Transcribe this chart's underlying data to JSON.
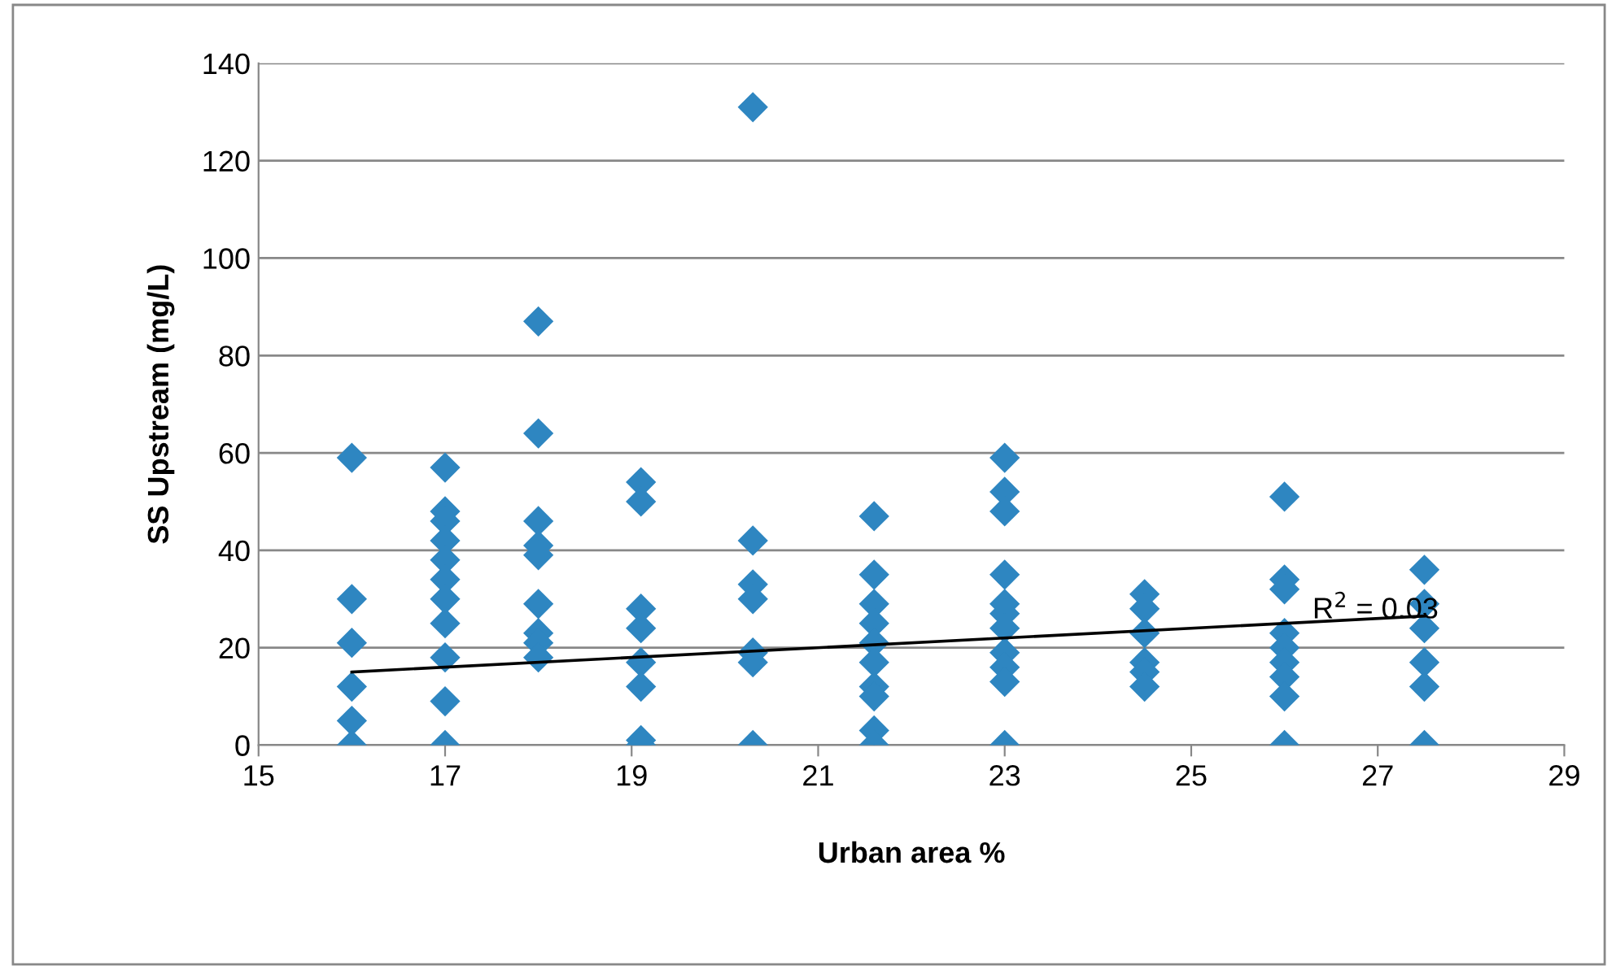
{
  "chart_data": {
    "type": "scatter",
    "xlabel": "Urban area %",
    "ylabel": "SS Upstream (mg/L)",
    "xlim": [
      15,
      29
    ],
    "xticks": [
      15,
      17,
      19,
      21,
      23,
      25,
      27,
      29
    ],
    "ylim": [
      0,
      140
    ],
    "yticks": [
      0,
      20,
      40,
      60,
      80,
      100,
      120,
      140
    ],
    "grid": "y",
    "legend": false,
    "annotations": [
      {
        "text": "R$^{2}$ = 0.03",
        "x": 26.3,
        "y": 26
      }
    ],
    "series": [
      {
        "marker": "diamond",
        "color": "#2e86c1",
        "x": [
          16,
          16,
          16,
          16,
          16,
          16,
          17,
          17,
          17,
          17,
          17,
          17,
          17,
          17,
          17,
          17,
          17,
          18,
          18,
          18,
          18,
          18,
          18,
          18,
          18,
          18,
          19.1,
          19.1,
          19.1,
          19.1,
          19.1,
          19.1,
          19.1,
          19.1,
          20.3,
          20.3,
          20.3,
          20.3,
          20.3,
          20.3,
          20.3,
          21.6,
          21.6,
          21.6,
          21.6,
          21.6,
          21.6,
          21.6,
          21.6,
          21.6,
          21.6,
          23,
          23,
          23,
          23,
          23,
          23,
          23,
          23,
          23,
          23,
          23,
          24.5,
          24.5,
          24.5,
          24.5,
          24.5,
          24.5,
          26,
          26,
          26,
          26,
          26,
          26,
          26,
          26,
          26,
          27.5,
          27.5,
          27.5,
          27.5,
          27.5,
          27.5
        ],
        "values": [
          59,
          30,
          21,
          12,
          5,
          0,
          57,
          48,
          46,
          42,
          38,
          34,
          30,
          25,
          18,
          9,
          0,
          87,
          64,
          46,
          41,
          39,
          29,
          23,
          21,
          18,
          54,
          50,
          28,
          24,
          17,
          12,
          1,
          0,
          131,
          42,
          33,
          30,
          19,
          17,
          0,
          47,
          35,
          29,
          25,
          21,
          17,
          12,
          10,
          3,
          0,
          59,
          52,
          48,
          35,
          29,
          27,
          24,
          19,
          16,
          13,
          0,
          31,
          28,
          23,
          17,
          15,
          12,
          51,
          34,
          32,
          23,
          20,
          17,
          14,
          10,
          0,
          36,
          29,
          24,
          17,
          12,
          0
        ]
      },
      {
        "type": "line",
        "color": "#000000",
        "x": [
          16,
          27.5
        ],
        "values": [
          15,
          26.5
        ]
      }
    ]
  }
}
